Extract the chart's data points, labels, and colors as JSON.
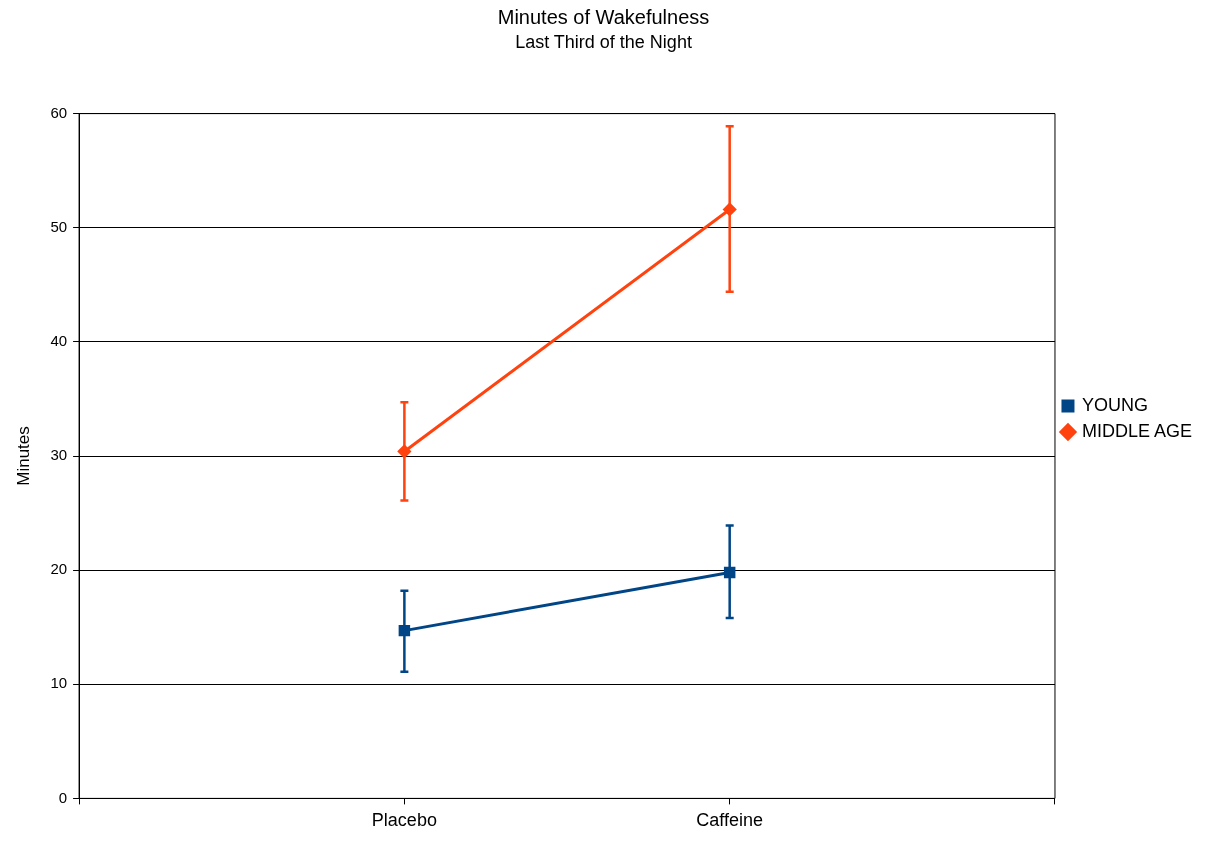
{
  "chart_data": {
    "type": "line",
    "title": "Minutes of Wakefulness",
    "subtitle": "Last Third of the Night",
    "ylabel": "Minutes",
    "categories": [
      null,
      "Placebo",
      "Caffeine",
      null
    ],
    "series": [
      {
        "name": "YOUNG",
        "color": "#004586",
        "marker": "square",
        "values": [
          null,
          14.7,
          19.8,
          null
        ],
        "errors": [
          null,
          [
            11.1,
            18.2
          ],
          [
            15.8,
            23.9
          ],
          null
        ]
      },
      {
        "name": "MIDDLE AGE",
        "color": "#ff420e",
        "marker": "diamond",
        "values": [
          null,
          30.4,
          51.6,
          null
        ],
        "errors": [
          null,
          [
            26.1,
            34.7
          ],
          [
            44.4,
            58.9
          ],
          null
        ]
      }
    ],
    "ylim": [
      0,
      60
    ],
    "yticks": [
      0,
      10,
      20,
      30,
      40,
      50,
      60
    ],
    "grid": "y",
    "legend": "right"
  }
}
